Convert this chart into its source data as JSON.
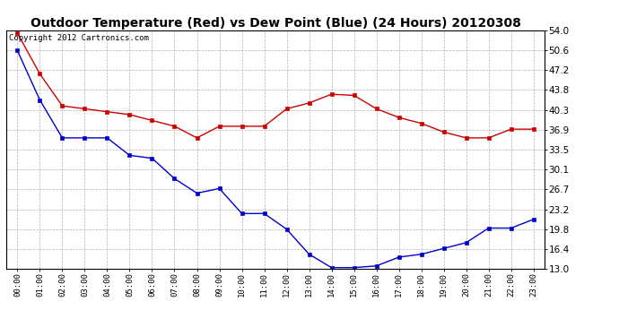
{
  "title": "Outdoor Temperature (Red) vs Dew Point (Blue) (24 Hours) 20120308",
  "copyright_text": "Copyright 2012 Cartronics.com",
  "x_labels": [
    "00:00",
    "01:00",
    "02:00",
    "03:00",
    "04:00",
    "05:00",
    "06:00",
    "07:00",
    "08:00",
    "09:00",
    "10:00",
    "11:00",
    "12:00",
    "13:00",
    "14:00",
    "15:00",
    "16:00",
    "17:00",
    "18:00",
    "19:00",
    "20:00",
    "21:00",
    "22:00",
    "23:00"
  ],
  "temp_red": [
    53.5,
    46.5,
    41.0,
    40.5,
    40.0,
    39.5,
    38.5,
    37.5,
    35.5,
    37.5,
    37.5,
    37.5,
    40.5,
    41.5,
    43.0,
    42.8,
    40.5,
    39.0,
    38.0,
    36.5,
    35.5,
    35.5,
    37.0,
    37.0
  ],
  "dew_blue": [
    50.5,
    42.0,
    35.5,
    35.5,
    35.5,
    32.5,
    32.0,
    28.5,
    26.0,
    26.8,
    22.5,
    22.5,
    19.8,
    15.5,
    13.2,
    13.2,
    13.5,
    15.0,
    15.5,
    16.5,
    17.5,
    20.0,
    20.0,
    21.5
  ],
  "y_ticks": [
    13.0,
    16.4,
    19.8,
    23.2,
    26.7,
    30.1,
    33.5,
    36.9,
    40.3,
    43.8,
    47.2,
    50.6,
    54.0
  ],
  "ylim": [
    13.0,
    54.0
  ],
  "red_color": "#cc0000",
  "blue_color": "#0000cc",
  "bg_color": "#ffffff",
  "grid_color": "#aaaaaa",
  "title_fontsize": 10,
  "copyright_fontsize": 6.5
}
